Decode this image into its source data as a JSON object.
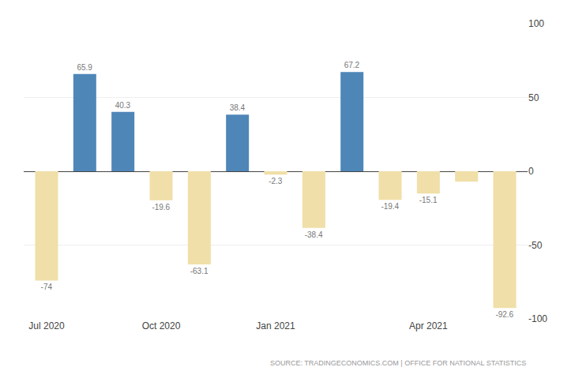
{
  "chart_data": {
    "type": "bar",
    "categories": [
      "Jul 2020",
      null,
      null,
      "Oct 2020",
      null,
      null,
      "Jan 2021",
      null,
      null,
      null,
      "Apr 2021",
      null,
      null
    ],
    "values": [
      -74,
      65.9,
      40.3,
      -19.6,
      -63.1,
      38.4,
      -2.3,
      -38.4,
      67.2,
      -19.4,
      -15.1,
      -7.0,
      -92.6
    ],
    "value_labels": [
      "-74",
      "65.9",
      "40.3",
      "-19.6",
      "-63.1",
      "38.4",
      "-2.3",
      "-38.4",
      "67.2",
      "-19.4",
      "-15.1",
      null,
      "-92.6"
    ],
    "colors": [
      "#f0dfa8",
      "#4f86b8",
      "#4f86b8",
      "#f0dfa8",
      "#f0dfa8",
      "#4f86b8",
      "#f0dfa8",
      "#f0dfa8",
      "#4f86b8",
      "#f0dfa8",
      "#f0dfa8",
      "#f0dfa8",
      "#f0dfa8"
    ],
    "data_labels": true,
    "ylim": [
      -100,
      100
    ],
    "yticks": [
      -100,
      -50,
      0,
      50,
      100
    ],
    "grid": true,
    "annotations": [
      "SOURCE: TRADINGECONOMICS.COM | OFFICE FOR NATIONAL STATISTICS"
    ]
  }
}
